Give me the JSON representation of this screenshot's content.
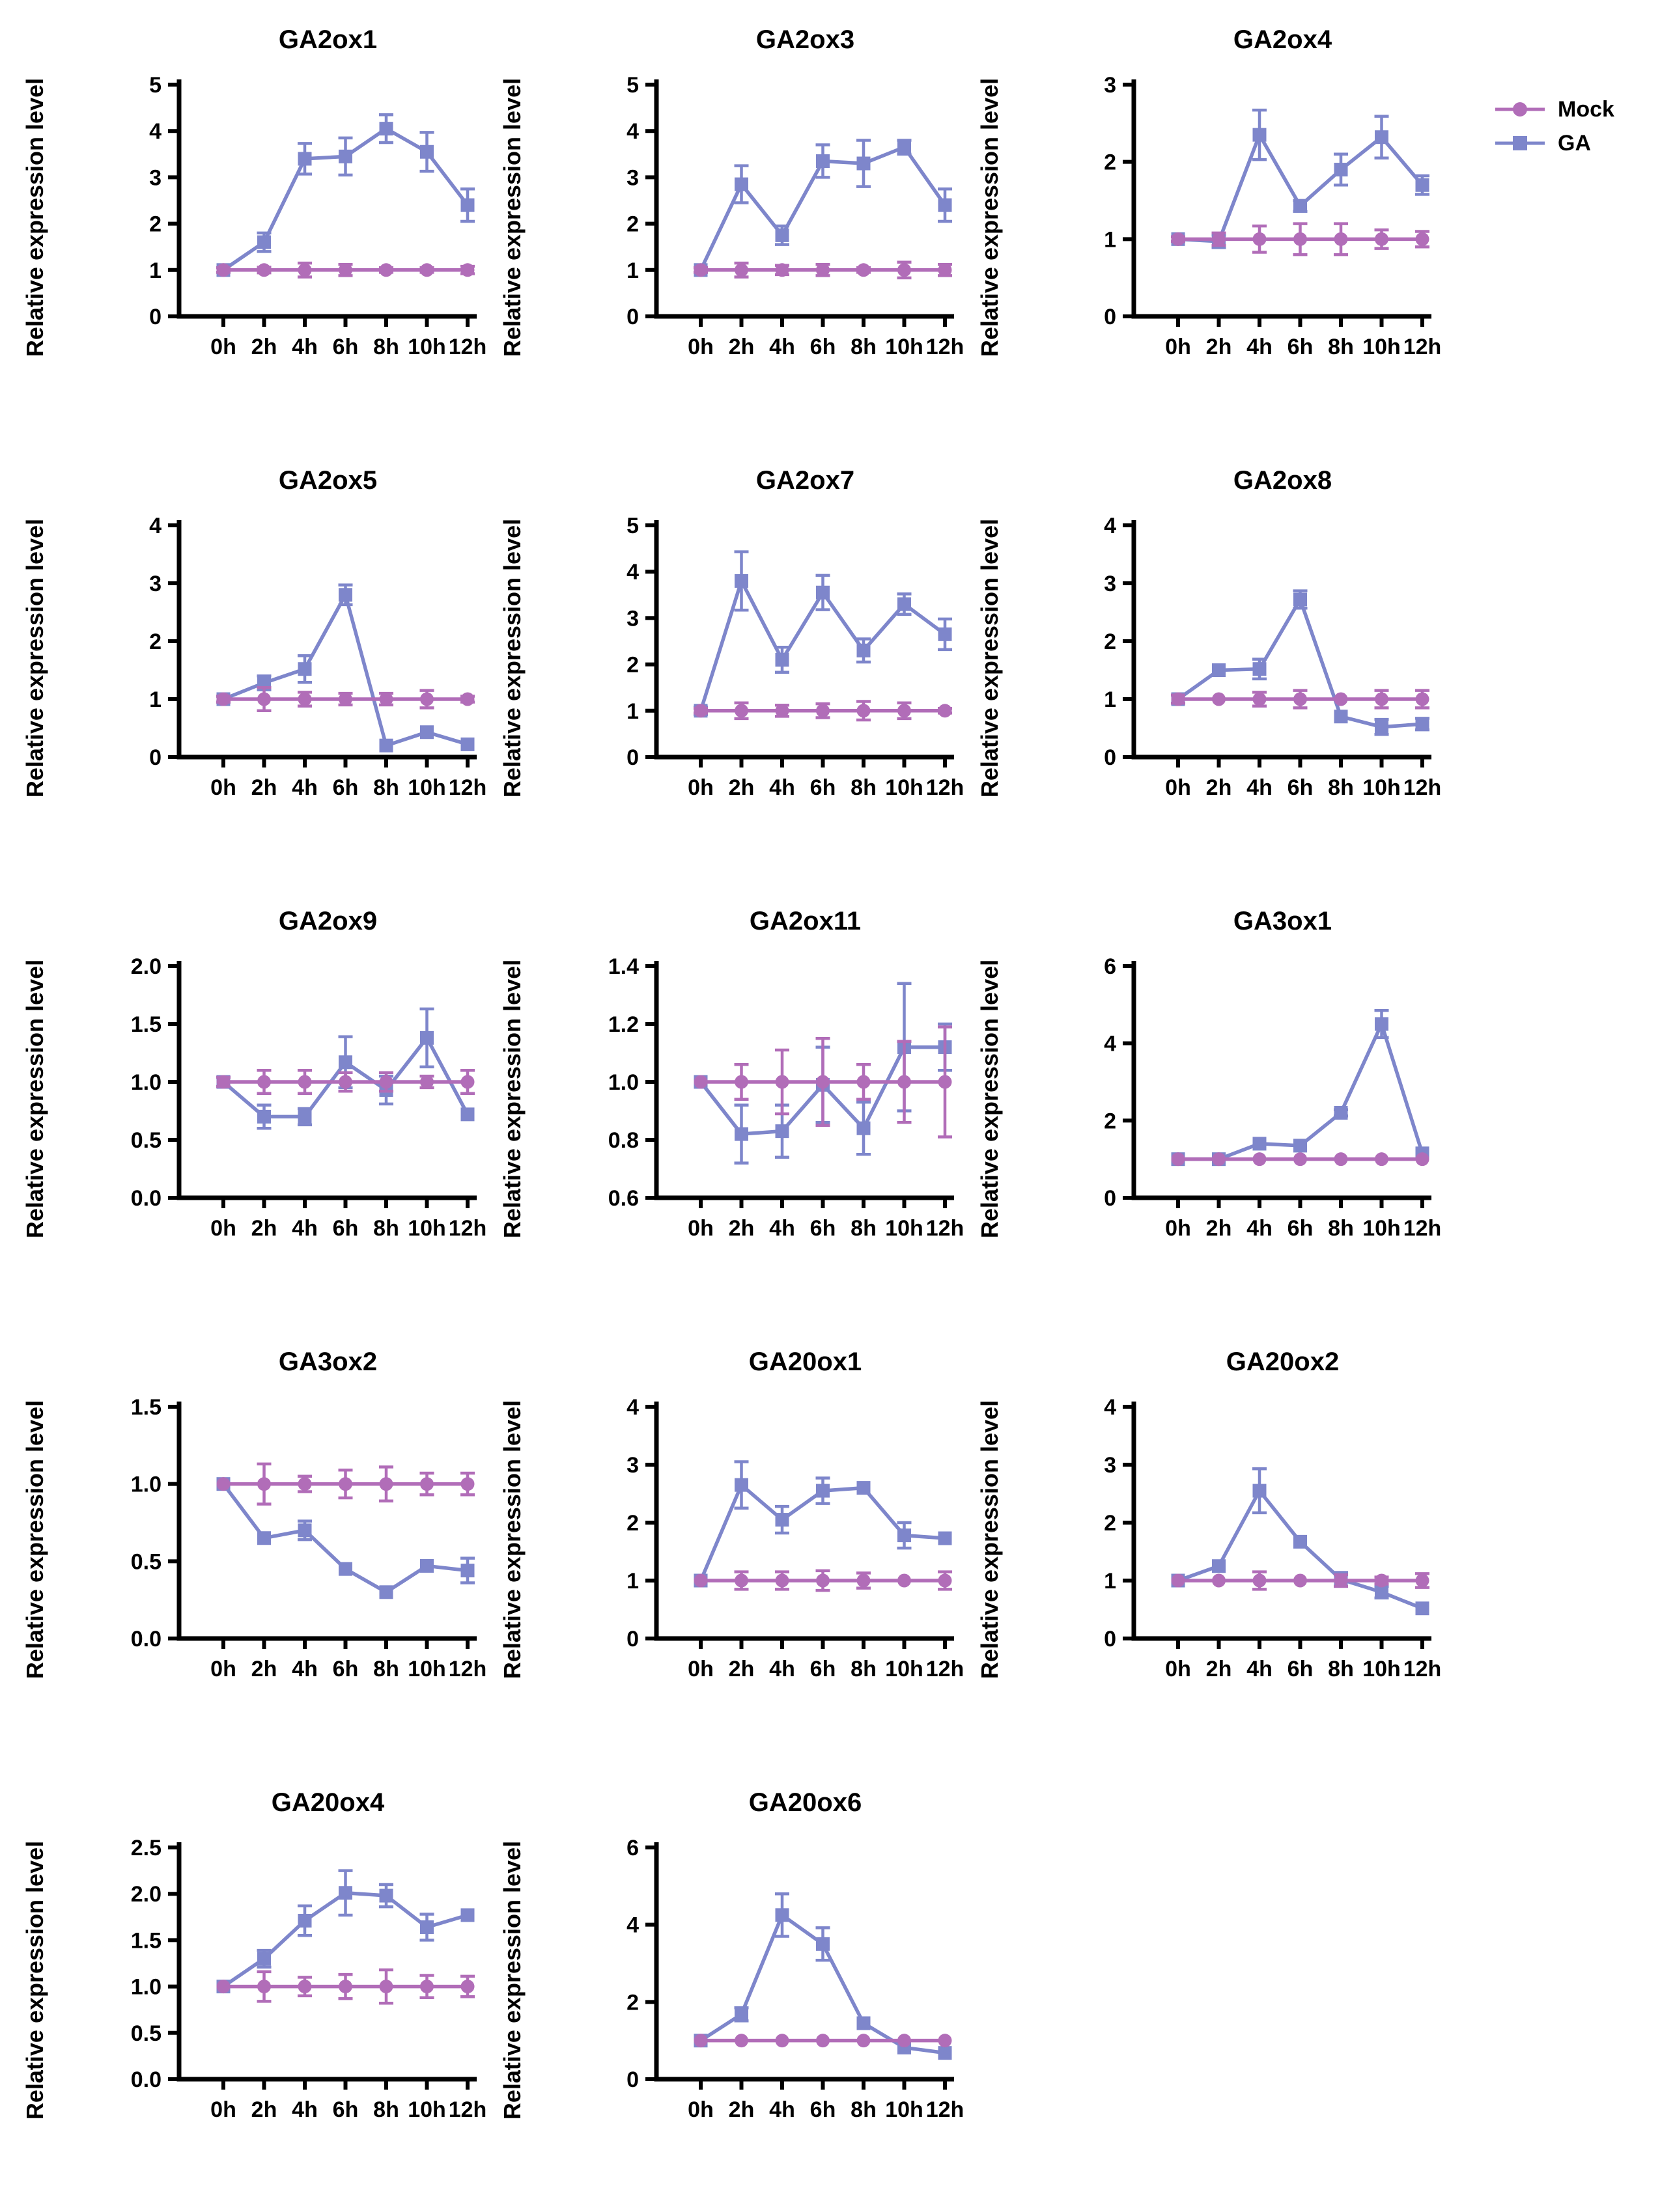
{
  "axis": {
    "ylabel": "Relative expression level",
    "x_categories": [
      "0h",
      "2h",
      "4h",
      "6h",
      "8h",
      "10h",
      "12h"
    ],
    "axis_color": "#000000"
  },
  "legend": {
    "items": [
      {
        "label": "Mock",
        "marker": "circle",
        "color": "#b16db8"
      },
      {
        "label": "GA",
        "marker": "square",
        "color": "#7e86cb"
      }
    ]
  },
  "chart_data": [
    {
      "type": "line",
      "title": "GA2ox1",
      "ylim": [
        0,
        5
      ],
      "yticks": [
        "0",
        "1",
        "2",
        "3",
        "4",
        "5"
      ],
      "series": [
        {
          "name": "Mock",
          "marker": "circle",
          "color": "#b16db8",
          "values": [
            1,
            1,
            1,
            1,
            1,
            1,
            1
          ],
          "errors": [
            0.05,
            0.06,
            0.15,
            0.12,
            0.05,
            0.05,
            0.08
          ]
        },
        {
          "name": "GA",
          "marker": "square",
          "color": "#7e86cb",
          "values": [
            1,
            1.6,
            3.4,
            3.45,
            4.05,
            3.55,
            2.4
          ],
          "errors": [
            0.05,
            0.2,
            0.33,
            0.4,
            0.3,
            0.42,
            0.35
          ]
        }
      ]
    },
    {
      "type": "line",
      "title": "GA2ox3",
      "ylim": [
        0,
        5
      ],
      "yticks": [
        "0",
        "1",
        "2",
        "3",
        "4",
        "5"
      ],
      "series": [
        {
          "name": "Mock",
          "marker": "circle",
          "color": "#b16db8",
          "values": [
            1,
            1,
            1,
            1,
            1,
            1,
            1
          ],
          "errors": [
            0.05,
            0.15,
            0.1,
            0.12,
            0.05,
            0.17,
            0.12
          ]
        },
        {
          "name": "GA",
          "marker": "square",
          "color": "#7e86cb",
          "values": [
            1,
            2.85,
            1.75,
            3.35,
            3.3,
            3.65,
            2.4
          ],
          "errors": [
            0.05,
            0.4,
            0.2,
            0.35,
            0.5,
            0.15,
            0.35
          ]
        }
      ]
    },
    {
      "type": "line",
      "title": "GA2ox4",
      "ylim": [
        0,
        3
      ],
      "yticks": [
        "0",
        "1",
        "2",
        "3"
      ],
      "series": [
        {
          "name": "Mock",
          "marker": "circle",
          "color": "#b16db8",
          "values": [
            1,
            1,
            1,
            1,
            1,
            1,
            1
          ],
          "errors": [
            0.03,
            0.08,
            0.17,
            0.2,
            0.2,
            0.12,
            0.1
          ]
        },
        {
          "name": "GA",
          "marker": "square",
          "color": "#7e86cb",
          "values": [
            1,
            0.97,
            2.35,
            1.43,
            1.9,
            2.32,
            1.7
          ],
          "errors": [
            0.03,
            0.08,
            0.32,
            0.07,
            0.2,
            0.27,
            0.12
          ]
        }
      ]
    },
    {
      "type": "line",
      "title": "GA2ox5",
      "ylim": [
        0,
        4
      ],
      "yticks": [
        "0",
        "1",
        "2",
        "3",
        "4"
      ],
      "series": [
        {
          "name": "Mock",
          "marker": "circle",
          "color": "#b16db8",
          "values": [
            1,
            1,
            1,
            1,
            1,
            1,
            1
          ],
          "errors": [
            0.05,
            0.2,
            0.12,
            0.1,
            0.1,
            0.15,
            0.05
          ]
        },
        {
          "name": "GA",
          "marker": "square",
          "color": "#7e86cb",
          "values": [
            1,
            1.28,
            1.52,
            2.8,
            0.2,
            0.43,
            0.22
          ],
          "errors": [
            0.05,
            0.12,
            0.23,
            0.17,
            0,
            0,
            0
          ]
        }
      ]
    },
    {
      "type": "line",
      "title": "GA2ox7",
      "ylim": [
        0,
        5
      ],
      "yticks": [
        "0",
        "1",
        "2",
        "3",
        "4",
        "5"
      ],
      "series": [
        {
          "name": "Mock",
          "marker": "circle",
          "color": "#b16db8",
          "values": [
            1,
            1,
            1,
            1,
            1,
            1,
            1
          ],
          "errors": [
            0.05,
            0.17,
            0.12,
            0.15,
            0.2,
            0.17,
            0.05
          ]
        },
        {
          "name": "GA",
          "marker": "square",
          "color": "#7e86cb",
          "values": [
            1,
            3.8,
            2.1,
            3.55,
            2.3,
            3.3,
            2.65
          ],
          "errors": [
            0.08,
            0.63,
            0.27,
            0.37,
            0.25,
            0.22,
            0.33
          ]
        }
      ]
    },
    {
      "type": "line",
      "title": "GA2ox8",
      "ylim": [
        0,
        4
      ],
      "yticks": [
        "0",
        "1",
        "2",
        "3",
        "4"
      ],
      "series": [
        {
          "name": "Mock",
          "marker": "circle",
          "color": "#b16db8",
          "values": [
            1,
            1,
            1,
            1,
            1,
            1,
            1
          ],
          "errors": [
            0.07,
            0,
            0.12,
            0.15,
            0,
            0.15,
            0.15
          ]
        },
        {
          "name": "GA",
          "marker": "square",
          "color": "#7e86cb",
          "values": [
            1,
            1.5,
            1.52,
            2.72,
            0.7,
            0.52,
            0.57
          ],
          "errors": [
            0.07,
            0,
            0.17,
            0.15,
            0,
            0.13,
            0.1
          ]
        }
      ]
    },
    {
      "type": "line",
      "title": "GA2ox9",
      "ylim": [
        0,
        2
      ],
      "yticks": [
        "0.0",
        "0.5",
        "1.0",
        "1.5",
        "2.0"
      ],
      "series": [
        {
          "name": "Mock",
          "marker": "circle",
          "color": "#b16db8",
          "values": [
            1,
            1,
            1,
            1,
            1,
            1,
            1
          ],
          "errors": [
            0.04,
            0.1,
            0.1,
            0.08,
            0.08,
            0.05,
            0.1
          ]
        },
        {
          "name": "GA",
          "marker": "square",
          "color": "#7e86cb",
          "values": [
            1,
            0.7,
            0.7,
            1.17,
            0.93,
            1.38,
            0.72
          ],
          "errors": [
            0.04,
            0.1,
            0.07,
            0.22,
            0.12,
            0.25,
            0
          ]
        }
      ]
    },
    {
      "type": "line",
      "title": "GA2ox11",
      "ylim": [
        0.6,
        1.4
      ],
      "yticks": [
        "0.6",
        "0.8",
        "1.0",
        "1.2",
        "1.4"
      ],
      "series": [
        {
          "name": "Mock",
          "marker": "circle",
          "color": "#b16db8",
          "values": [
            1,
            1,
            1,
            1,
            1,
            1,
            1
          ],
          "errors": [
            0,
            0.06,
            0.11,
            0.15,
            0.06,
            0.14,
            0.19
          ]
        },
        {
          "name": "GA",
          "marker": "square",
          "color": "#7e86cb",
          "values": [
            1,
            0.82,
            0.83,
            0.99,
            0.84,
            1.12,
            1.12
          ],
          "errors": [
            0,
            0.1,
            0.09,
            0.13,
            0.09,
            0.22,
            0.08
          ]
        }
      ]
    },
    {
      "type": "line",
      "title": "GA3ox1",
      "ylim": [
        0,
        6
      ],
      "yticks": [
        "0",
        "2",
        "4",
        "6"
      ],
      "series": [
        {
          "name": "Mock",
          "marker": "circle",
          "color": "#b16db8",
          "values": [
            1,
            1,
            1,
            1,
            1,
            1,
            1
          ],
          "errors": [
            0,
            0,
            0,
            0,
            0,
            0,
            0
          ]
        },
        {
          "name": "GA",
          "marker": "square",
          "color": "#7e86cb",
          "values": [
            1,
            1,
            1.4,
            1.35,
            2.2,
            4.5,
            1.15
          ],
          "errors": [
            0,
            0,
            0,
            0,
            0.08,
            0.35,
            0
          ]
        }
      ]
    },
    {
      "type": "line",
      "title": "GA3ox2",
      "ylim": [
        0,
        1.5
      ],
      "yticks": [
        "0.0",
        "0.5",
        "1.0",
        "1.5"
      ],
      "series": [
        {
          "name": "Mock",
          "marker": "circle",
          "color": "#b16db8",
          "values": [
            1,
            1,
            1,
            1,
            1,
            1,
            1
          ],
          "errors": [
            0,
            0.13,
            0.05,
            0.09,
            0.11,
            0.07,
            0.07
          ]
        },
        {
          "name": "GA",
          "marker": "square",
          "color": "#7e86cb",
          "values": [
            1,
            0.65,
            0.7,
            0.45,
            0.3,
            0.47,
            0.44
          ],
          "errors": [
            0,
            0,
            0.06,
            0,
            0,
            0,
            0.08
          ]
        }
      ]
    },
    {
      "type": "line",
      "title": "GA20ox1",
      "ylim": [
        0,
        4
      ],
      "yticks": [
        "0",
        "1",
        "2",
        "3",
        "4"
      ],
      "series": [
        {
          "name": "Mock",
          "marker": "circle",
          "color": "#b16db8",
          "values": [
            1,
            1,
            1,
            1,
            1,
            1,
            1
          ],
          "errors": [
            0,
            0.15,
            0.15,
            0.17,
            0.13,
            0,
            0.15
          ]
        },
        {
          "name": "GA",
          "marker": "square",
          "color": "#7e86cb",
          "values": [
            1,
            2.65,
            2.05,
            2.55,
            2.6,
            1.78,
            1.73
          ],
          "errors": [
            0,
            0.4,
            0.23,
            0.22,
            0,
            0.22,
            0
          ]
        }
      ]
    },
    {
      "type": "line",
      "title": "GA20ox2",
      "ylim": [
        0,
        4
      ],
      "yticks": [
        "0",
        "1",
        "2",
        "3",
        "4"
      ],
      "series": [
        {
          "name": "Mock",
          "marker": "circle",
          "color": "#b16db8",
          "values": [
            1,
            1,
            1,
            1,
            1,
            1,
            1
          ],
          "errors": [
            0,
            0,
            0.15,
            0,
            0.1,
            0.06,
            0.12
          ]
        },
        {
          "name": "GA",
          "marker": "square",
          "color": "#7e86cb",
          "values": [
            1,
            1.25,
            2.55,
            1.67,
            1.02,
            0.8,
            0.52
          ],
          "errors": [
            0,
            0,
            0.38,
            0,
            0.12,
            0.1,
            0
          ]
        }
      ]
    },
    {
      "type": "line",
      "title": "GA20ox4",
      "ylim": [
        0,
        2.5
      ],
      "yticks": [
        "0.0",
        "0.5",
        "1.0",
        "1.5",
        "2.0",
        "2.5"
      ],
      "series": [
        {
          "name": "Mock",
          "marker": "circle",
          "color": "#b16db8",
          "values": [
            1,
            1,
            1,
            1,
            1,
            1,
            1
          ],
          "errors": [
            0,
            0.16,
            0.1,
            0.13,
            0.18,
            0.12,
            0.11
          ]
        },
        {
          "name": "GA",
          "marker": "square",
          "color": "#7e86cb",
          "values": [
            1,
            1.3,
            1.71,
            2.01,
            1.98,
            1.64,
            1.77
          ],
          "errors": [
            0,
            0.09,
            0.16,
            0.24,
            0.12,
            0.14,
            0
          ]
        }
      ]
    },
    {
      "type": "line",
      "title": "GA20ox6",
      "ylim": [
        0,
        6
      ],
      "yticks": [
        "0",
        "2",
        "4",
        "6"
      ],
      "series": [
        {
          "name": "Mock",
          "marker": "circle",
          "color": "#b16db8",
          "values": [
            1,
            1,
            1,
            1,
            1,
            1,
            1
          ],
          "errors": [
            0,
            0,
            0,
            0,
            0,
            0,
            0
          ]
        },
        {
          "name": "GA",
          "marker": "square",
          "color": "#7e86cb",
          "values": [
            1,
            1.68,
            4.25,
            3.5,
            1.45,
            0.82,
            0.68
          ],
          "errors": [
            0,
            0.17,
            0.55,
            0.42,
            0,
            0,
            0
          ]
        }
      ]
    }
  ]
}
